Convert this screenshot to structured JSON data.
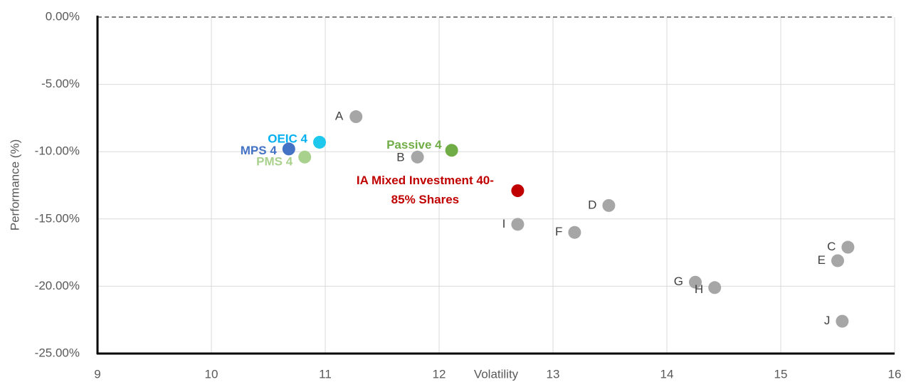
{
  "chart_data": {
    "type": "scatter",
    "x_label": "Volatility",
    "y_label": "Performance (%)",
    "xlim": [
      9,
      16
    ],
    "xticks": [
      9,
      10,
      11,
      12,
      13,
      14,
      15,
      16
    ],
    "ylim": [
      -25,
      0
    ],
    "yticks": [
      {
        "value": -25,
        "label": "-25.00%"
      },
      {
        "value": -20,
        "label": "-20.00%"
      },
      {
        "value": -15,
        "label": "-15.00%"
      },
      {
        "value": -10,
        "label": "-10.00%"
      },
      {
        "value": -5,
        "label": "-5.00%"
      },
      {
        "value": 0,
        "label": "0.00%"
      }
    ],
    "grid": true,
    "series": [
      {
        "name": "A",
        "color": "#a6a6a6",
        "x": [
          11.27
        ],
        "values": [
          -7.4
        ]
      },
      {
        "name": "OEIC 4",
        "color": "#1ec8ec",
        "x": [
          10.95
        ],
        "values": [
          -9.3
        ]
      },
      {
        "name": "MPS 4",
        "color": "#4472c4",
        "x": [
          10.68
        ],
        "values": [
          -9.8
        ]
      },
      {
        "name": "PMS 4",
        "color": "#a9d18e",
        "x": [
          10.82
        ],
        "values": [
          -10.4
        ]
      },
      {
        "name": "Passive 4",
        "color": "#70ad47",
        "x": [
          12.11
        ],
        "values": [
          -9.9
        ]
      },
      {
        "name": "B",
        "color": "#a6a6a6",
        "x": [
          11.81
        ],
        "values": [
          -10.4
        ]
      },
      {
        "name": "IA Mixed Investment 40-85% Shares",
        "color": "#c00000",
        "x": [
          12.69
        ],
        "values": [
          -12.9
        ]
      },
      {
        "name": "D",
        "color": "#a6a6a6",
        "x": [
          13.49
        ],
        "values": [
          -14.0
        ]
      },
      {
        "name": "I",
        "color": "#a6a6a6",
        "x": [
          12.69
        ],
        "values": [
          -15.4
        ]
      },
      {
        "name": "F",
        "color": "#a6a6a6",
        "x": [
          13.19
        ],
        "values": [
          -16.0
        ]
      },
      {
        "name": "C",
        "color": "#a6a6a6",
        "x": [
          15.59
        ],
        "values": [
          -17.1
        ]
      },
      {
        "name": "E",
        "color": "#a6a6a6",
        "x": [
          15.5
        ],
        "values": [
          -18.1
        ]
      },
      {
        "name": "G",
        "color": "#a6a6a6",
        "x": [
          14.25
        ],
        "values": [
          -19.7
        ]
      },
      {
        "name": "H",
        "color": "#a6a6a6",
        "x": [
          14.42
        ],
        "values": [
          -20.1
        ]
      },
      {
        "name": "J",
        "color": "#a6a6a6",
        "x": [
          15.54
        ],
        "values": [
          -22.6
        ]
      }
    ]
  }
}
